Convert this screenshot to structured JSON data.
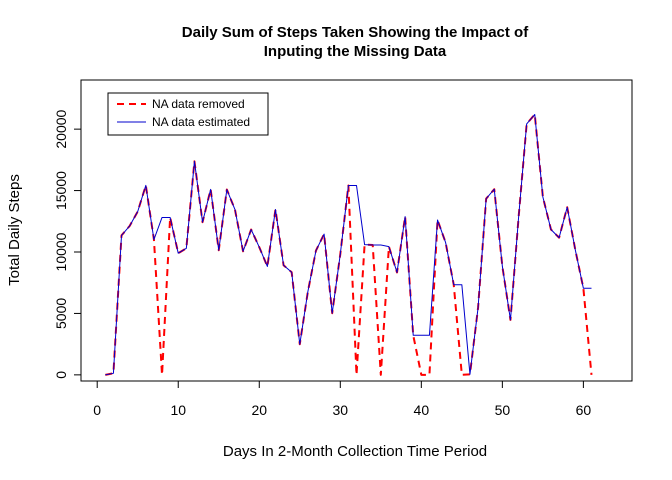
{
  "chart_data": {
    "type": "line",
    "title_line1": "Daily Sum of Steps Taken Showing the Impact of",
    "title_line2": "Inputing the Missing Data",
    "xlabel": "Days In 2-Month Collection Time Period",
    "ylabel": "Total Daily Steps",
    "xlim": [
      -2,
      66
    ],
    "ylim": [
      -500,
      24000
    ],
    "xticks": [
      0,
      10,
      20,
      30,
      40,
      50,
      60
    ],
    "yticks": [
      0,
      5000,
      10000,
      15000,
      20000
    ],
    "legend_position": "top-left",
    "grid": false,
    "x": [
      1,
      2,
      3,
      4,
      5,
      6,
      7,
      8,
      9,
      10,
      11,
      12,
      13,
      14,
      15,
      16,
      17,
      18,
      19,
      20,
      21,
      22,
      23,
      24,
      25,
      26,
      27,
      28,
      29,
      30,
      31,
      32,
      33,
      34,
      35,
      36,
      37,
      38,
      39,
      40,
      41,
      42,
      43,
      44,
      45,
      46,
      47,
      48,
      49,
      50,
      51,
      52,
      53,
      54,
      55,
      56,
      57,
      58,
      59,
      60,
      61
    ],
    "series": [
      {
        "name": "NA data removed",
        "color": "#ff0000",
        "style": "dashed",
        "values": [
          0,
          126,
          11352,
          12116,
          13294,
          15420,
          11015,
          0,
          12811,
          9900,
          10304,
          17382,
          12426,
          15098,
          10139,
          15084,
          13452,
          10056,
          11829,
          10395,
          8821,
          13460,
          8918,
          8355,
          2492,
          6778,
          10119,
          11458,
          5018,
          9819,
          15414,
          0,
          10600,
          10571,
          0,
          10439,
          8334,
          12883,
          3219,
          0,
          0,
          12608,
          10765,
          7336,
          0,
          41,
          5441,
          14339,
          15110,
          8841,
          4472,
          12787,
          20427,
          21194,
          14478,
          11834,
          11162,
          13646,
          10183,
          7047,
          0
        ]
      },
      {
        "name": "NA data estimated",
        "color": "#0000cd",
        "style": "solid",
        "values": [
          0,
          126,
          11352,
          12116,
          13294,
          15420,
          11015,
          12811,
          12811,
          9900,
          10304,
          17382,
          12426,
          15098,
          10139,
          15084,
          13452,
          10056,
          11829,
          10395,
          8821,
          13460,
          8918,
          8355,
          2492,
          6778,
          10119,
          11458,
          5018,
          9819,
          15414,
          15414,
          10600,
          10571,
          10571,
          10439,
          8334,
          12883,
          3219,
          3219,
          3219,
          12608,
          10765,
          7336,
          7336,
          41,
          5441,
          14339,
          15110,
          8841,
          4472,
          12787,
          20427,
          21194,
          14478,
          11834,
          11162,
          13646,
          10183,
          7047,
          7047
        ]
      }
    ]
  }
}
